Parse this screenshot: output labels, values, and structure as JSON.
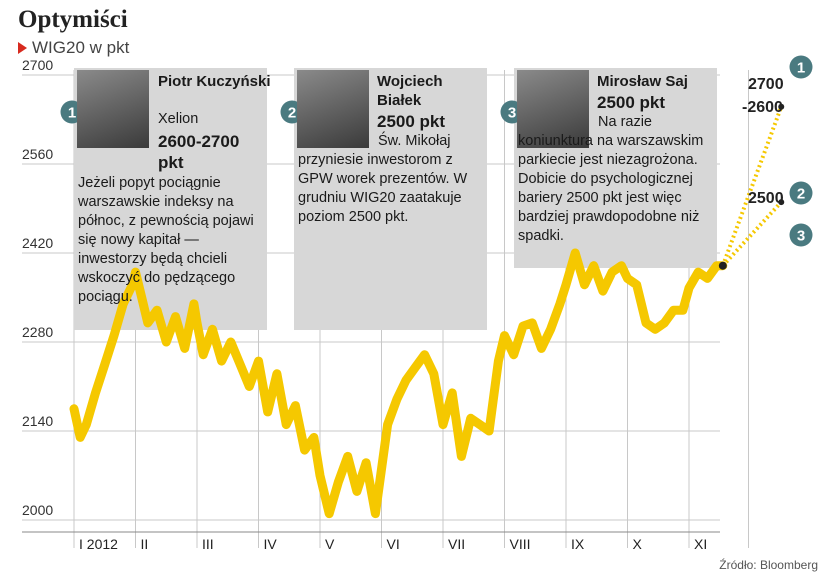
{
  "header": {
    "title": "Optymiści",
    "subtitle": "WIG20 w pkt"
  },
  "forecasts": [
    {
      "number": "1",
      "name": "Piotr Kuczyński",
      "company": "Xelion",
      "value": "2600-2700 pkt",
      "text": "Jeżeli popyt pociągnie warszawskie indeksy na północ, z pewnością pojawi się nowy kapitał — inwestorzy będą chcieli wskoczyć do pędzącego pociągu."
    },
    {
      "number": "2",
      "name": "Wojciech Białek",
      "company": "",
      "value": "2500 pkt",
      "text": "Św. Mikołaj przyniesie inwestorom z GPW worek prezentów. W grudniu WIG20 zaatakuje poziom 2500 pkt."
    },
    {
      "number": "3",
      "name": "Mirosław Saj",
      "company": "",
      "value": "2500 pkt",
      "text": "Na razie koniunktura na warszawskim parkiecie jest niezagrożona. Dobicie do psychologicznej bariery 2500 pkt jest więc bardziej prawdopodobne niż spadki."
    }
  ],
  "projections": [
    {
      "label": "2700 -2600",
      "badge": "1",
      "value": 2650
    },
    {
      "label": "2500",
      "badges": [
        "2",
        "3"
      ],
      "value": 2500
    }
  ],
  "source": "Źródło: Bloomberg",
  "colors": {
    "line": "#f5c800",
    "badge": "#4a7a80",
    "box": "#d7d7d7",
    "grid": "#c8c8c8"
  },
  "chart_data": {
    "type": "line",
    "title": "Optymiści",
    "subtitle": "WIG20 w pkt",
    "ylim": [
      2000,
      2700
    ],
    "yticks": [
      2000,
      2140,
      2280,
      2420,
      2560,
      2700
    ],
    "xticks": [
      "I 2012",
      "II",
      "III",
      "IV",
      "V",
      "VI",
      "VII",
      "VIII",
      "IX",
      "X",
      "XI"
    ],
    "x_months": [
      1,
      2,
      3,
      4,
      5,
      6,
      7,
      8,
      9,
      10,
      11
    ],
    "series": [
      {
        "name": "WIG20",
        "x": [
          1.0,
          1.1,
          1.2,
          1.35,
          1.5,
          1.65,
          1.8,
          1.95,
          2.0,
          2.1,
          2.2,
          2.35,
          2.5,
          2.65,
          2.8,
          2.95,
          3.0,
          3.1,
          3.25,
          3.4,
          3.55,
          3.7,
          3.85,
          4.0,
          4.15,
          4.3,
          4.45,
          4.6,
          4.75,
          4.9,
          5.0,
          5.15,
          5.3,
          5.45,
          5.6,
          5.75,
          5.9,
          6.0,
          6.1,
          6.25,
          6.4,
          6.55,
          6.7,
          6.85,
          7.0,
          7.15,
          7.3,
          7.45,
          7.6,
          7.75,
          7.9,
          8.0,
          8.15,
          8.3,
          8.45,
          8.6,
          8.75,
          8.9,
          9.0,
          9.15,
          9.3,
          9.45,
          9.6,
          9.75,
          9.9,
          10.0,
          10.15,
          10.3,
          10.45,
          10.6,
          10.75,
          10.9,
          11.0,
          11.15,
          11.3,
          11.45,
          11.55
        ],
        "y": [
          2175,
          2130,
          2150,
          2200,
          2245,
          2290,
          2340,
          2370,
          2390,
          2350,
          2310,
          2330,
          2280,
          2320,
          2270,
          2340,
          2310,
          2260,
          2300,
          2250,
          2280,
          2245,
          2210,
          2250,
          2170,
          2230,
          2150,
          2180,
          2110,
          2130,
          2070,
          2010,
          2060,
          2100,
          2045,
          2090,
          2010,
          2080,
          2150,
          2190,
          2220,
          2240,
          2260,
          2230,
          2150,
          2200,
          2100,
          2160,
          2150,
          2140,
          2250,
          2290,
          2260,
          2305,
          2310,
          2270,
          2300,
          2340,
          2370,
          2420,
          2370,
          2400,
          2360,
          2390,
          2400,
          2380,
          2370,
          2310,
          2300,
          2310,
          2330,
          2330,
          2365,
          2390,
          2380,
          2400,
          2400
        ]
      }
    ],
    "projection_lines": [
      {
        "from": [
          11.55,
          2400
        ],
        "to": [
          12.5,
          2650
        ]
      },
      {
        "from": [
          11.55,
          2400
        ],
        "to": [
          12.5,
          2500
        ]
      }
    ]
  }
}
